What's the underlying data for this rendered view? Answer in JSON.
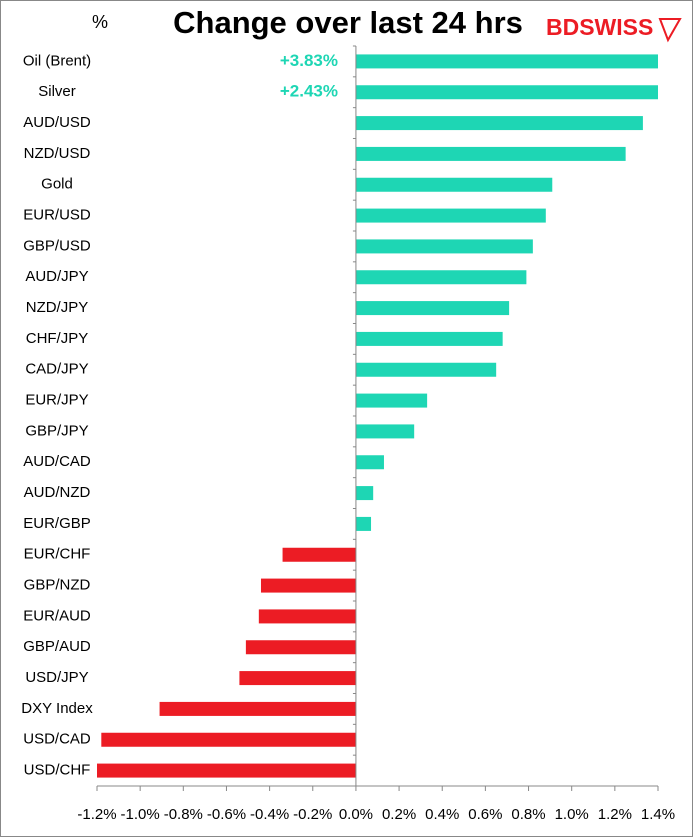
{
  "chart_data": {
    "type": "hbar",
    "title": "Change over last 24 hrs",
    "unit_label": "%",
    "brand": "BDSWISS",
    "categories": [
      "Oil (Brent)",
      "Silver",
      "AUD/USD",
      "NZD/USD",
      "Gold",
      "EUR/USD",
      "GBP/USD",
      "AUD/JPY",
      "NZD/JPY",
      "CHF/JPY",
      "CAD/JPY",
      "EUR/JPY",
      "GBP/JPY",
      "AUD/CAD",
      "AUD/NZD",
      "EUR/GBP",
      "EUR/CHF",
      "GBP/NZD",
      "EUR/AUD",
      "GBP/AUD",
      "USD/JPY",
      "DXY Index",
      "USD/CAD",
      "USD/CHF"
    ],
    "values": [
      3.83,
      2.43,
      1.33,
      1.25,
      0.91,
      0.88,
      0.82,
      0.79,
      0.71,
      0.68,
      0.65,
      0.33,
      0.27,
      0.13,
      0.08,
      0.07,
      -0.34,
      -0.44,
      -0.45,
      -0.51,
      -0.54,
      -0.91,
      -1.18,
      -1.2
    ],
    "value_labels": [
      "+3.83%",
      "+2.43%",
      null,
      null,
      null,
      null,
      null,
      null,
      null,
      null,
      null,
      null,
      null,
      null,
      null,
      null,
      null,
      null,
      null,
      null,
      null,
      null,
      null,
      null
    ],
    "color_positive": "#1ed6b4",
    "color_negative": "#ec1c24",
    "xlim": [
      -1.2,
      1.4
    ],
    "xticks": [
      {
        "value": -1.2,
        "label": "-1.2%"
      },
      {
        "value": -1.0,
        "label": "-1.0%"
      },
      {
        "value": -0.8,
        "label": "-0.8%"
      },
      {
        "value": -0.6,
        "label": "-0.6%"
      },
      {
        "value": -0.4,
        "label": "-0.4%"
      },
      {
        "value": -0.2,
        "label": "-0.2%"
      },
      {
        "value": 0,
        "label": "0.0%"
      },
      {
        "value": 0.2,
        "label": "0.2%"
      },
      {
        "value": 0.4,
        "label": "0.4%"
      },
      {
        "value": 0.6,
        "label": "0.6%"
      },
      {
        "value": 0.8,
        "label": "0.8%"
      },
      {
        "value": 1.0,
        "label": "1.0%"
      },
      {
        "value": 1.2,
        "label": "1.2%"
      },
      {
        "value": 1.4,
        "label": "1.4%"
      }
    ]
  }
}
